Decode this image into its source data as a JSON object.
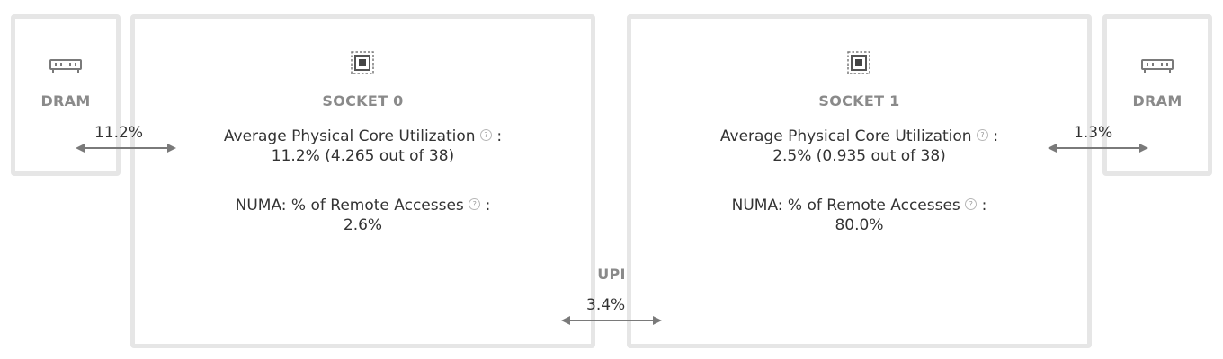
{
  "dram_left": {
    "label": "DRAM",
    "icon": "memory-module-icon",
    "bandwidth_pct": "11.2%"
  },
  "socket0": {
    "icon": "cpu-chip-icon",
    "label": "SOCKET 0",
    "core_util_label": "Average Physical Core Utilization",
    "core_util_value": "11.2% (4.265 out of 38)",
    "numa_label": "NUMA: % of Remote Accesses",
    "numa_value": "2.6%"
  },
  "upi": {
    "label": "UPI",
    "bandwidth_pct": "3.4%"
  },
  "socket1": {
    "icon": "cpu-chip-icon",
    "label": "SOCKET 1",
    "core_util_label": "Average Physical Core Utilization",
    "core_util_value": "2.5% (0.935 out of 38)",
    "numa_label": "NUMA: % of Remote Accesses",
    "numa_value": "80.0%"
  },
  "dram_right": {
    "label": "DRAM",
    "icon": "memory-module-icon",
    "bandwidth_pct": "1.3%"
  },
  "colors": {
    "border": "#e6e6e6",
    "label": "#8a8a8a",
    "text": "#333333",
    "arrow": "#7a7a7a"
  },
  "help_icon": "question-circle-icon"
}
